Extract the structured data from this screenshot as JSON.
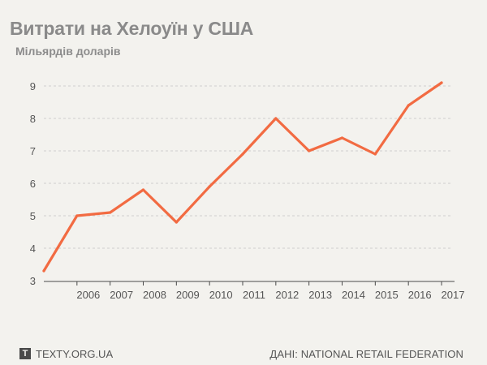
{
  "header": {
    "title": "Витрати на Хелоуїн у США",
    "subtitle": "Мільярдів доларів"
  },
  "footer": {
    "logo_letter": "T",
    "site": "TEXTY.ORG.UA",
    "source": "ДАНІ: NATIONAL RETAIL FEDERATION"
  },
  "colors": {
    "line": "#f26b42",
    "grid": "#cfcfcf",
    "axis": "#4a4a4a",
    "background": "#f3f2ee"
  },
  "chart_data": {
    "type": "line",
    "title": "Витрати на Хелоуїн у США",
    "ylabel": "Мільярдів доларів",
    "ylim": [
      3,
      9
    ],
    "yticks": [
      3,
      4,
      5,
      6,
      7,
      8,
      9
    ],
    "xlim": [
      2005,
      2017
    ],
    "xticks": [
      2006,
      2007,
      2008,
      2009,
      2010,
      2011,
      2012,
      2013,
      2014,
      2015,
      2016,
      2017
    ],
    "grid": true,
    "series": [
      {
        "x": [
          2005,
          2006,
          2007,
          2008,
          2009,
          2010,
          2011,
          2012,
          2013,
          2014,
          2015,
          2016,
          2017
        ],
        "values": [
          3.3,
          5.0,
          5.1,
          5.8,
          4.8,
          5.9,
          6.9,
          8.0,
          7.0,
          7.4,
          6.9,
          8.4,
          9.1
        ]
      }
    ]
  }
}
